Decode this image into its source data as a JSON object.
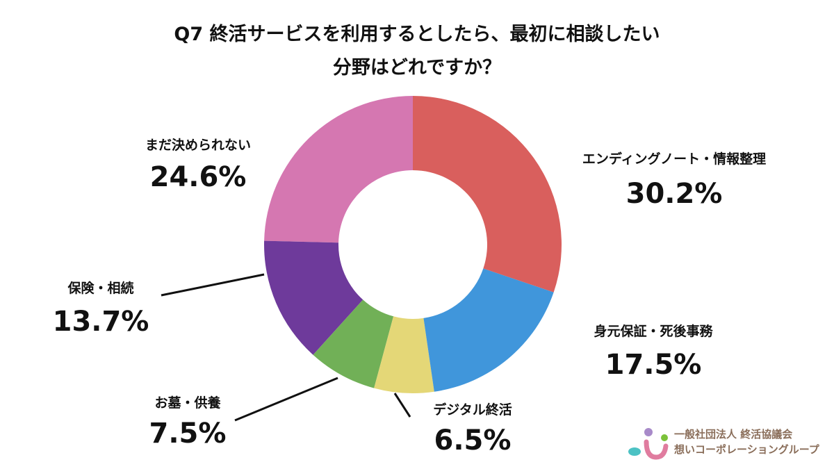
{
  "title_line1": "Q7 終活サービスを利用するとしたら、最初に相談したい",
  "title_line2": "分野はどれですか？",
  "chart_data": {
    "type": "pie",
    "donut": true,
    "title": "Q7 終活サービスを利用するとしたら、最初に相談したい分野はどれですか？",
    "slices": [
      {
        "label": "エンディングノート・情報整理",
        "value": 30.2,
        "display": "30.2%",
        "color": "#d95f5d"
      },
      {
        "label": "身元保証・死後事務",
        "value": 17.5,
        "display": "17.5%",
        "color": "#4096db"
      },
      {
        "label": "デジタル終活",
        "value": 6.5,
        "display": "6.5%",
        "color": "#e4d777"
      },
      {
        "label": "お墓・供養",
        "value": 7.5,
        "display": "7.5%",
        "color": "#71b057"
      },
      {
        "label": "保険・相続",
        "value": 13.7,
        "display": "13.7%",
        "color": "#6e3a9b"
      },
      {
        "label": "まだ決められない",
        "value": 24.6,
        "display": "24.6%",
        "color": "#d577b1"
      }
    ],
    "start": "12 o'clock",
    "direction": "clockwise"
  },
  "logo": {
    "line1": "一般社団法人 終活協議会",
    "line2": "想いコーポレーショングループ"
  }
}
